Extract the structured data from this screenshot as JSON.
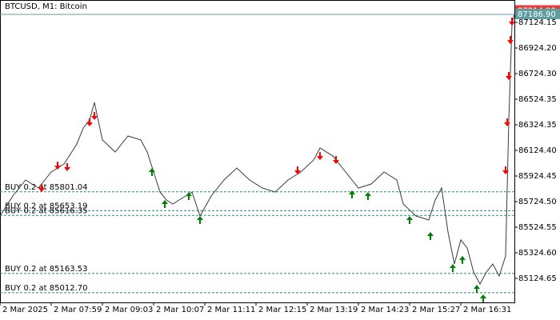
{
  "chart_data": {
    "type": "line",
    "title": "BTCUSD, M1: Bitcoin",
    "color": "#3a3a3a",
    "x": [
      0,
      16,
      32,
      48,
      64,
      80,
      96,
      104,
      112,
      118,
      128,
      144,
      160,
      176,
      184,
      192,
      200,
      208,
      216,
      232,
      240,
      250,
      264,
      280,
      296,
      312,
      328,
      344,
      360,
      376,
      392,
      400,
      416,
      432,
      448,
      464,
      480,
      496,
      504,
      520,
      536,
      544,
      552,
      560,
      568,
      576,
      584,
      592,
      600,
      608,
      616,
      624,
      632,
      636,
      640,
      643
    ],
    "values": [
      85612,
      85768,
      85893,
      85831,
      85956,
      86018,
      86174,
      86299,
      86362,
      86499,
      86206,
      86112,
      86237,
      86206,
      86112,
      85956,
      85799,
      85737,
      85706,
      85768,
      85799,
      85612,
      85768,
      85893,
      85987,
      85893,
      85831,
      85799,
      85893,
      85956,
      86049,
      86143,
      86081,
      85956,
      85831,
      85862,
      85956,
      85893,
      85706,
      85612,
      85581,
      85737,
      85831,
      85487,
      85237,
      85425,
      85362,
      85175,
      85081,
      85175,
      85237,
      85143,
      85300,
      86362,
      87112,
      87187
    ],
    "sell_signals": {
      "color": "#ff0000",
      "x": [
        52,
        72,
        84,
        112,
        118,
        372,
        400,
        420,
        632,
        634,
        636,
        638,
        640
      ],
      "values": [
        85799,
        85974,
        85962,
        86312,
        86362,
        85937,
        86049,
        86018,
        85937,
        86312,
        86674,
        86955,
        87099
      ]
    },
    "buy_signals": {
      "color": "#008000",
      "x": [
        190,
        206,
        236,
        250,
        440,
        460,
        512,
        538,
        566,
        578,
        596,
        604
      ],
      "values": [
        85987,
        85737,
        85799,
        85612,
        85812,
        85799,
        85612,
        85487,
        85237,
        85300,
        85075,
        85000
      ]
    },
    "orders": [
      {
        "label": "BUY 0.2 at 85801.04",
        "price": 85801.04
      },
      {
        "label": "BUY 0.2 at 85653.19",
        "price": 85653.19
      },
      {
        "label": "BUY 0.2 at 85616.35",
        "price": 85616.35
      },
      {
        "label": "BUY 0.2 at 85163.53",
        "price": 85163.53
      },
      {
        "label": "BUY 0.2 at 85012.70",
        "price": 85012.7
      }
    ],
    "ask": {
      "value": 87214.9,
      "label": "87214.90"
    },
    "bid": {
      "value": 87186.9,
      "label": "87186.90"
    },
    "xlim": [
      0,
      643
    ],
    "xticks": [
      {
        "value": 0,
        "label": "2 Mar 2025"
      },
      {
        "value": 64,
        "label": "2 Mar 07:59"
      },
      {
        "value": 128,
        "label": "2 Mar 09:03"
      },
      {
        "value": 192,
        "label": "2 Mar 10:07"
      },
      {
        "value": 256,
        "label": "2 Mar 11:11"
      },
      {
        "value": 320,
        "label": "2 Mar 12:15"
      },
      {
        "value": 384,
        "label": "2 Mar 13:19"
      },
      {
        "value": 448,
        "label": "2 Mar 14:23"
      },
      {
        "value": 512,
        "label": "2 Mar 15:27"
      },
      {
        "value": 576,
        "label": "2 Mar 16:31"
      }
    ],
    "ylim": [
      84937.2,
      87299.1
    ],
    "yticks": [
      87124.15,
      {
        "value": 86924.2,
        "label": "86924.20"
      },
      {
        "value": 86724.3,
        "label": "86724.30"
      },
      86524.35,
      86324.35,
      {
        "value": 86124.4,
        "label": "86124.40"
      },
      85924.45,
      {
        "value": 85724.5,
        "label": "85724.50"
      },
      85524.55,
      {
        "value": 85324.6,
        "label": "85324.60"
      },
      85124.65
    ]
  }
}
